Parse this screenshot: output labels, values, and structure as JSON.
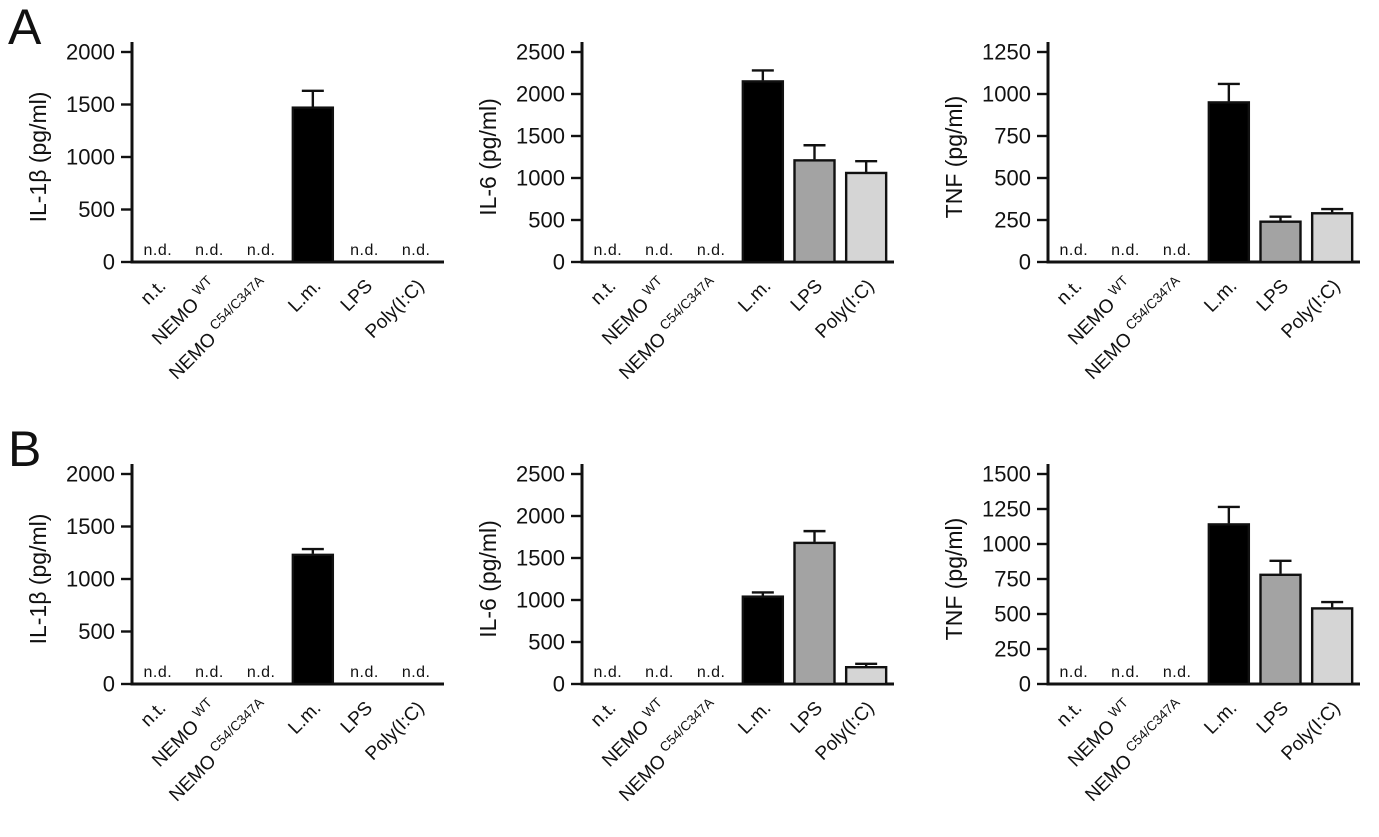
{
  "figure": {
    "panels": [
      "A",
      "B"
    ]
  },
  "style": {
    "axis_color": "#111111",
    "bar_colors": [
      "#000000",
      "#000000",
      "#000000",
      "#000000",
      "#a3a3a3",
      "#d5d5d5"
    ]
  },
  "nd_text": "n.d.",
  "categories_display": [
    {
      "text": "n.t."
    },
    {
      "text": "NEMO",
      "sup": "WT"
    },
    {
      "text": "NEMO",
      "sup": "C54/C347A"
    },
    {
      "text": "L.m."
    },
    {
      "text": "LPS"
    },
    {
      "text": "Poly(I:C)"
    }
  ],
  "chart_data": [
    {
      "panel": "A",
      "type": "bar",
      "title": "",
      "xlabel": "",
      "ylabel": "IL-1β (pg/ml)",
      "ylim": [
        0,
        2000
      ],
      "yticks": [
        0,
        500,
        1000,
        1500,
        2000
      ],
      "categories": [
        "n.t.",
        "NEMO WT",
        "NEMO C54/C347A",
        "L.m.",
        "LPS",
        "Poly(I:C)"
      ],
      "values": [
        null,
        null,
        null,
        1470,
        null,
        null
      ],
      "errors_plus": [
        null,
        null,
        null,
        160,
        null,
        null
      ],
      "not_detected": [
        true,
        true,
        true,
        false,
        true,
        true
      ]
    },
    {
      "panel": "A",
      "type": "bar",
      "title": "",
      "xlabel": "",
      "ylabel": "IL-6 (pg/ml)",
      "ylim": [
        0,
        2500
      ],
      "yticks": [
        0,
        500,
        1000,
        1500,
        2000,
        2500
      ],
      "categories": [
        "n.t.",
        "NEMO WT",
        "NEMO C54/C347A",
        "L.m.",
        "LPS",
        "Poly(I:C)"
      ],
      "values": [
        null,
        null,
        null,
        2150,
        1210,
        1060
      ],
      "errors_plus": [
        null,
        null,
        null,
        130,
        180,
        140
      ],
      "not_detected": [
        true,
        true,
        true,
        false,
        false,
        false
      ]
    },
    {
      "panel": "A",
      "type": "bar",
      "title": "",
      "xlabel": "",
      "ylabel": "TNF (pg/ml)",
      "ylim": [
        0,
        1250
      ],
      "yticks": [
        0,
        250,
        500,
        750,
        1000,
        1250
      ],
      "categories": [
        "n.t.",
        "NEMO WT",
        "NEMO C54/C347A",
        "L.m.",
        "LPS",
        "Poly(I:C)"
      ],
      "values": [
        null,
        null,
        null,
        950,
        240,
        290
      ],
      "errors_plus": [
        null,
        null,
        null,
        110,
        30,
        25
      ],
      "not_detected": [
        true,
        true,
        true,
        false,
        false,
        false
      ]
    },
    {
      "panel": "B",
      "type": "bar",
      "title": "",
      "xlabel": "",
      "ylabel": "IL-1β (pg/ml)",
      "ylim": [
        0,
        2000
      ],
      "yticks": [
        0,
        500,
        1000,
        1500,
        2000
      ],
      "categories": [
        "n.t.",
        "NEMO WT",
        "NEMO C54/C347A",
        "L.m.",
        "LPS",
        "Poly(I:C)"
      ],
      "values": [
        null,
        null,
        null,
        1230,
        null,
        null
      ],
      "errors_plus": [
        null,
        null,
        null,
        55,
        null,
        null
      ],
      "not_detected": [
        true,
        true,
        true,
        false,
        true,
        true
      ]
    },
    {
      "panel": "B",
      "type": "bar",
      "title": "",
      "xlabel": "",
      "ylabel": "IL-6 (pg/ml)",
      "ylim": [
        0,
        2500
      ],
      "yticks": [
        0,
        500,
        1000,
        1500,
        2000,
        2500
      ],
      "categories": [
        "n.t.",
        "NEMO WT",
        "NEMO C54/C347A",
        "L.m.",
        "LPS",
        "Poly(I:C)"
      ],
      "values": [
        null,
        null,
        null,
        1040,
        1680,
        200
      ],
      "errors_plus": [
        null,
        null,
        null,
        50,
        140,
        40
      ],
      "not_detected": [
        true,
        true,
        true,
        false,
        false,
        false
      ]
    },
    {
      "panel": "B",
      "type": "bar",
      "title": "",
      "xlabel": "",
      "ylabel": "TNF (pg/ml)",
      "ylim": [
        0,
        1500
      ],
      "yticks": [
        0,
        250,
        500,
        750,
        1000,
        1250,
        1500
      ],
      "categories": [
        "n.t.",
        "NEMO WT",
        "NEMO C54/C347A",
        "L.m.",
        "LPS",
        "Poly(I:C)"
      ],
      "values": [
        null,
        null,
        null,
        1140,
        780,
        540
      ],
      "errors_plus": [
        null,
        null,
        null,
        125,
        100,
        45
      ],
      "not_detected": [
        true,
        true,
        true,
        false,
        false,
        false
      ]
    }
  ]
}
